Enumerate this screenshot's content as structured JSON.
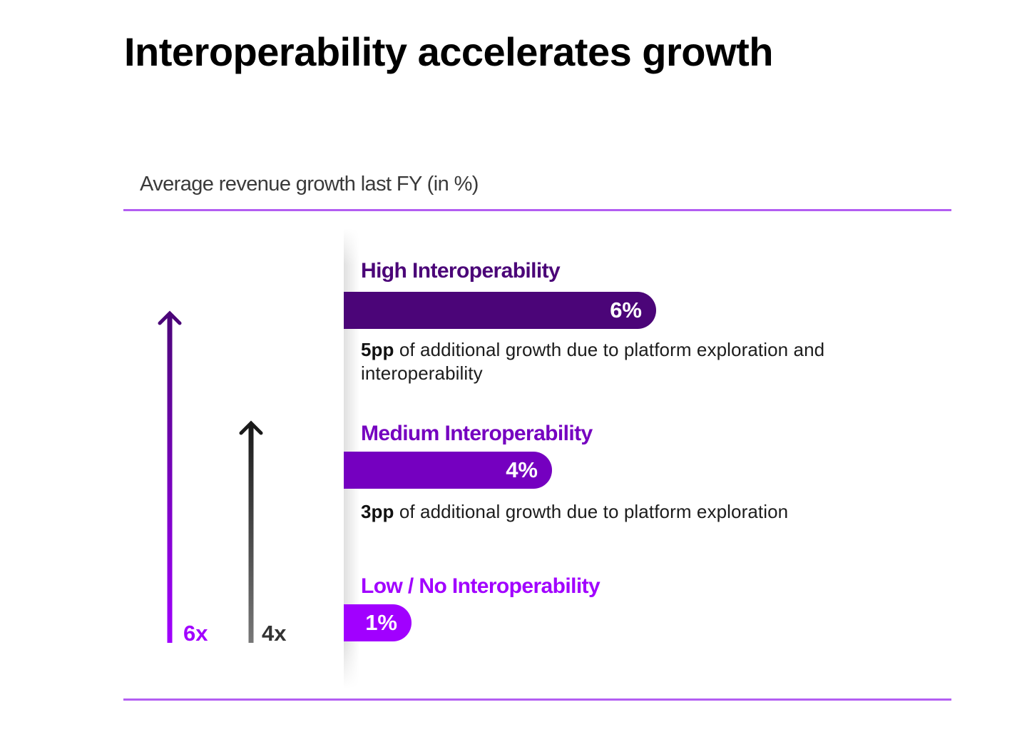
{
  "title": "Interoperability accelerates growth",
  "chart_data": {
    "type": "bar",
    "orientation": "horizontal",
    "title": "Interoperability accelerates growth",
    "subtitle": "Average revenue growth last FY (in %)",
    "xlabel": "",
    "ylabel": "",
    "xlim": [
      0,
      6
    ],
    "unit": "%",
    "grid": false,
    "categories": [
      "High Interoperability",
      "Medium Interoperability",
      "Low / No Interoperability"
    ],
    "values": [
      6,
      4,
      1
    ],
    "value_labels": [
      "6%",
      "4%",
      "1%"
    ],
    "colors": [
      "#4b0578",
      "#7500c0",
      "#a100ff"
    ],
    "annotations": [
      {
        "category": "High Interoperability",
        "bold": "5pp",
        "text": " of additional growth due to platform exploration and interoperability"
      },
      {
        "category": "Medium Interoperability",
        "bold": "3pp",
        "text": " of additional growth due to platform exploration"
      }
    ],
    "multipliers": [
      {
        "label": "6x",
        "color_top": "#4b0578",
        "color_bottom": "#a100ff",
        "text_color": "#a100ff",
        "relative_height": 6
      },
      {
        "label": "4x",
        "color_top": "#1a1a1a",
        "color_bottom": "#777777",
        "text_color": "#333333",
        "relative_height": 4
      }
    ]
  },
  "colors": {
    "rule": "#b35ef2",
    "high": "#4b0578",
    "medium": "#7500c0",
    "low": "#a100ff"
  }
}
